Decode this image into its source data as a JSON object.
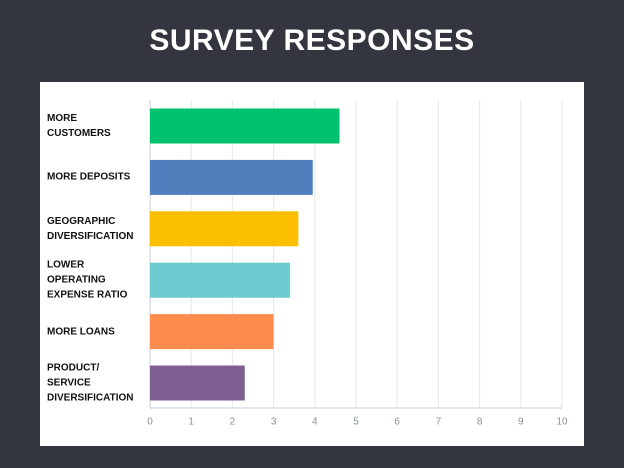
{
  "chart_data": {
    "type": "bar",
    "orientation": "horizontal",
    "title": "SURVEY RESPONSES",
    "categories": [
      "MORE CUSTOMERS",
      "MORE DEPOSITS",
      "GEOGRAPHIC DIVERSIFICATION",
      "LOWER OPERATING EXPENSE RATIO",
      "MORE LOANS",
      "PRODUCT/ SERVICE DIVERSIFICATION"
    ],
    "values": [
      4.6,
      3.95,
      3.6,
      3.4,
      3.0,
      2.3
    ],
    "colors": [
      "#00c16e",
      "#4f7fbc",
      "#fbbf00",
      "#6ccbd0",
      "#ff8c4f",
      "#7f5f93"
    ],
    "xlim": [
      0,
      10
    ],
    "xticks": [
      0,
      1,
      2,
      3,
      4,
      5,
      6,
      7,
      8,
      9,
      10
    ],
    "grid": true
  }
}
